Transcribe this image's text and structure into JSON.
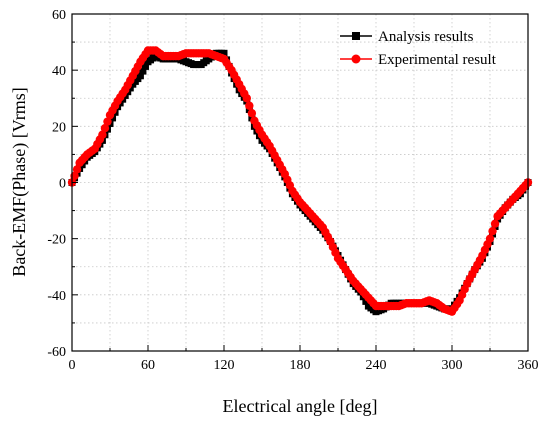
{
  "chart_data": {
    "type": "line",
    "xlabel": "Electrical angle [deg]",
    "ylabel": "Back-EMF(Phase) [Vrms]",
    "xlim": [
      0,
      360
    ],
    "ylim": [
      -60,
      60
    ],
    "x_ticks": [
      0,
      60,
      120,
      180,
      240,
      300,
      360
    ],
    "y_ticks": [
      -60,
      -40,
      -20,
      0,
      20,
      40,
      60
    ],
    "grid": true,
    "legend_position": "top-right",
    "series": [
      {
        "name": "Analysis results",
        "color": "#000000",
        "marker": "square",
        "x": [
          0,
          6,
          12,
          18,
          24,
          30,
          36,
          42,
          48,
          54,
          60,
          66,
          72,
          78,
          84,
          90,
          96,
          102,
          108,
          114,
          120,
          126,
          132,
          138,
          144,
          150,
          156,
          162,
          168,
          174,
          180,
          186,
          192,
          198,
          204,
          210,
          216,
          222,
          228,
          234,
          240,
          246,
          252,
          258,
          264,
          270,
          276,
          282,
          288,
          294,
          300,
          306,
          312,
          318,
          324,
          330,
          336,
          342,
          348,
          354,
          360
        ],
        "y": [
          0,
          5,
          9,
          11,
          15,
          21,
          27,
          31,
          35,
          38,
          43,
          45,
          44,
          44,
          44,
          43,
          42,
          42,
          44,
          46,
          46,
          39,
          33,
          29,
          20,
          15,
          12,
          7,
          2,
          -4,
          -8,
          -11,
          -14,
          -17,
          -21,
          -26,
          -31,
          -36,
          -39,
          -44,
          -46,
          -45,
          -43,
          -43,
          -43,
          -43,
          -43,
          -43,
          -44,
          -45,
          -45,
          -41,
          -36,
          -31,
          -27,
          -21,
          -13,
          -9,
          -6,
          -4,
          0
        ]
      },
      {
        "name": "Experimental result",
        "color": "#ff0000",
        "marker": "circle",
        "x": [
          0,
          6,
          12,
          18,
          24,
          30,
          36,
          42,
          48,
          54,
          60,
          66,
          72,
          78,
          84,
          90,
          96,
          102,
          108,
          114,
          120,
          126,
          132,
          138,
          144,
          150,
          156,
          162,
          168,
          174,
          180,
          186,
          192,
          198,
          204,
          210,
          216,
          222,
          228,
          234,
          240,
          246,
          252,
          258,
          264,
          270,
          276,
          282,
          288,
          294,
          300,
          306,
          312,
          318,
          324,
          330,
          336,
          342,
          348,
          354,
          360
        ],
        "y": [
          0,
          7,
          10,
          12,
          17,
          24,
          29,
          33,
          38,
          43,
          47,
          47,
          45,
          45,
          45,
          46,
          46,
          46,
          46,
          45,
          44,
          40,
          35,
          30,
          22,
          17,
          13,
          8,
          3,
          -3,
          -7,
          -10,
          -13,
          -16,
          -21,
          -27,
          -31,
          -35,
          -38,
          -41,
          -44,
          -44,
          -44,
          -44,
          -43,
          -43,
          -43,
          -42,
          -43,
          -45,
          -46,
          -42,
          -36,
          -31,
          -26,
          -20,
          -12,
          -9,
          -6,
          -3,
          0
        ]
      }
    ]
  }
}
